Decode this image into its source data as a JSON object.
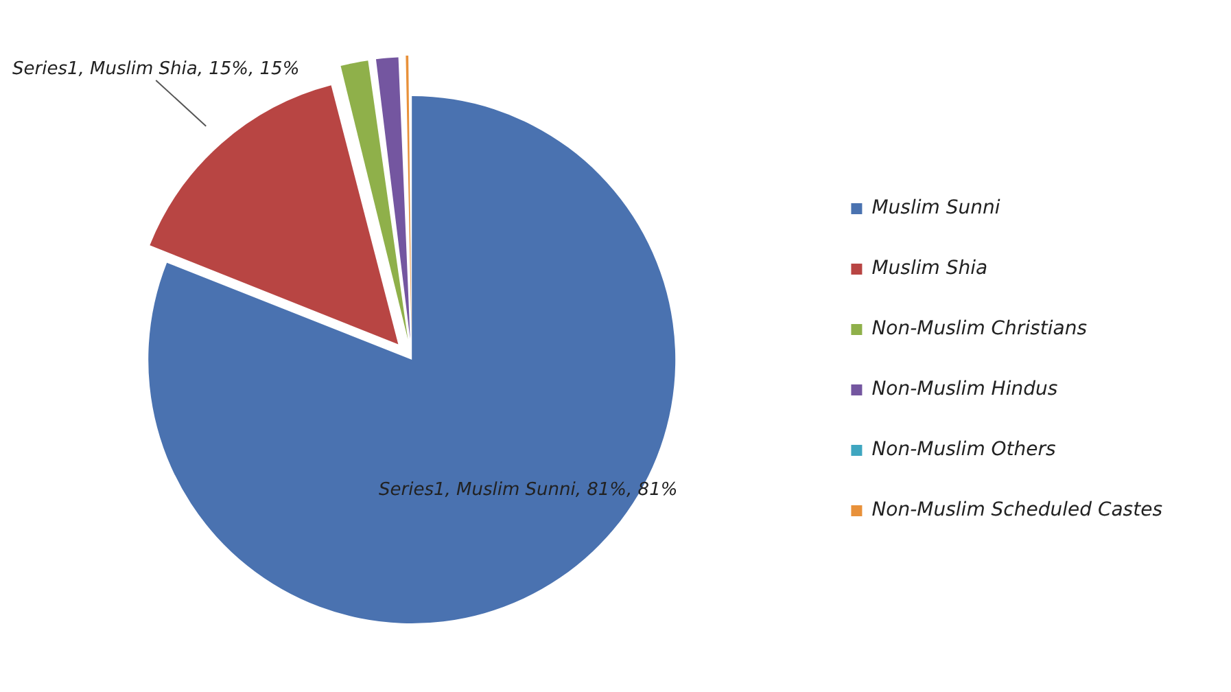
{
  "chart_data": {
    "type": "pie",
    "categories": [
      "Muslim Sunni",
      "Muslim Shia",
      "Non-Muslim Christians",
      "Non-Muslim Hindus",
      "Non-Muslim Others",
      "Non-Muslim Scheduled Castes"
    ],
    "values": [
      81,
      15,
      1.9,
      1.6,
      null,
      0.5
    ],
    "colors": [
      "#4a72b0",
      "#b84543",
      "#8fb04a",
      "#7456a0",
      "#3fa6c0",
      "#e8913a"
    ],
    "value_labels": [
      "Series1, Muslim Sunni, 81%, 81%",
      "Series1, Muslim Shia, 15%, 15%",
      null,
      null,
      null,
      null
    ],
    "legend": "right"
  }
}
